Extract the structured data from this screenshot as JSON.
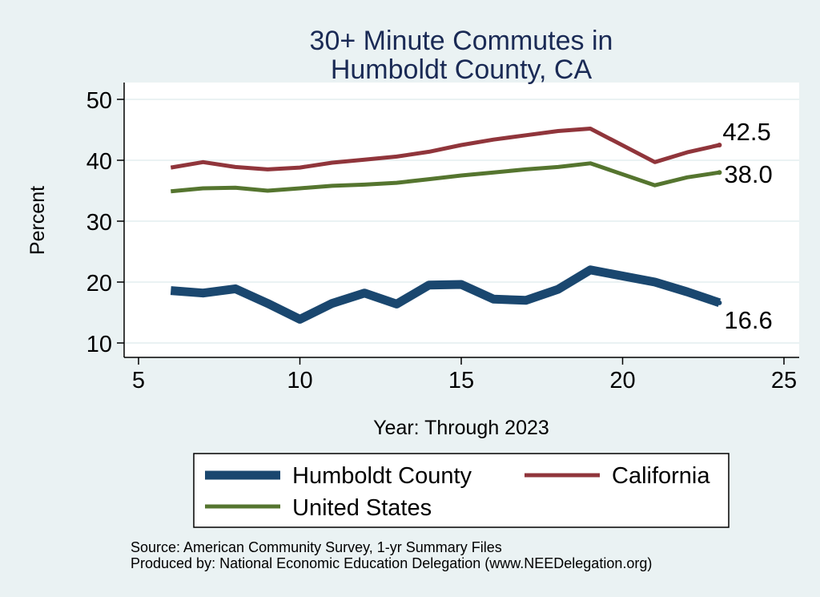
{
  "chart_data": {
    "type": "line",
    "title": [
      "30+ Minute Commutes in",
      "Humboldt County, CA"
    ],
    "xlabel": "Year: Through 2023",
    "ylabel": "Percent",
    "xlim": [
      5,
      25
    ],
    "ylim": [
      10,
      50
    ],
    "xticks": [
      "5",
      "10",
      "15",
      "20",
      "25"
    ],
    "yticks": [
      "10",
      "20",
      "30",
      "40",
      "50"
    ],
    "grid": true,
    "legend_position": "bottom",
    "series": [
      {
        "name": "Humboldt County",
        "color": "#1a476f",
        "x": [
          6,
          7,
          8,
          9,
          10,
          11,
          12,
          13,
          14,
          15,
          16,
          17,
          18,
          19,
          21,
          22,
          23
        ],
        "y": [
          18.6,
          18.2,
          18.9,
          16.5,
          13.9,
          16.5,
          18.2,
          16.4,
          19.5,
          19.6,
          17.2,
          17.0,
          18.8,
          22.0,
          20.0,
          18.4,
          16.6
        ],
        "end_label": "16.6"
      },
      {
        "name": "California",
        "color": "#90353b",
        "x": [
          6,
          7,
          8,
          9,
          10,
          11,
          12,
          13,
          14,
          15,
          16,
          17,
          18,
          19,
          21,
          22,
          23
        ],
        "y": [
          38.8,
          39.7,
          38.9,
          38.5,
          38.8,
          39.6,
          40.1,
          40.6,
          41.4,
          42.5,
          43.4,
          44.1,
          44.8,
          45.2,
          39.7,
          41.3,
          42.5
        ],
        "end_label": "42.5"
      },
      {
        "name": "United States",
        "color": "#55752f",
        "x": [
          6,
          7,
          8,
          9,
          10,
          11,
          12,
          13,
          14,
          15,
          16,
          17,
          18,
          19,
          21,
          22,
          23
        ],
        "y": [
          34.9,
          35.4,
          35.5,
          35.0,
          35.4,
          35.8,
          36.0,
          36.3,
          36.9,
          37.5,
          38.0,
          38.5,
          38.9,
          39.5,
          35.9,
          37.2,
          38.0
        ],
        "end_label": "38.0"
      }
    ]
  },
  "source_note": "Source: American Community Survey, 1-yr Summary Files",
  "produced_note": "Produced by: National Economic Education Delegation (www.NEEDelegation.org)"
}
